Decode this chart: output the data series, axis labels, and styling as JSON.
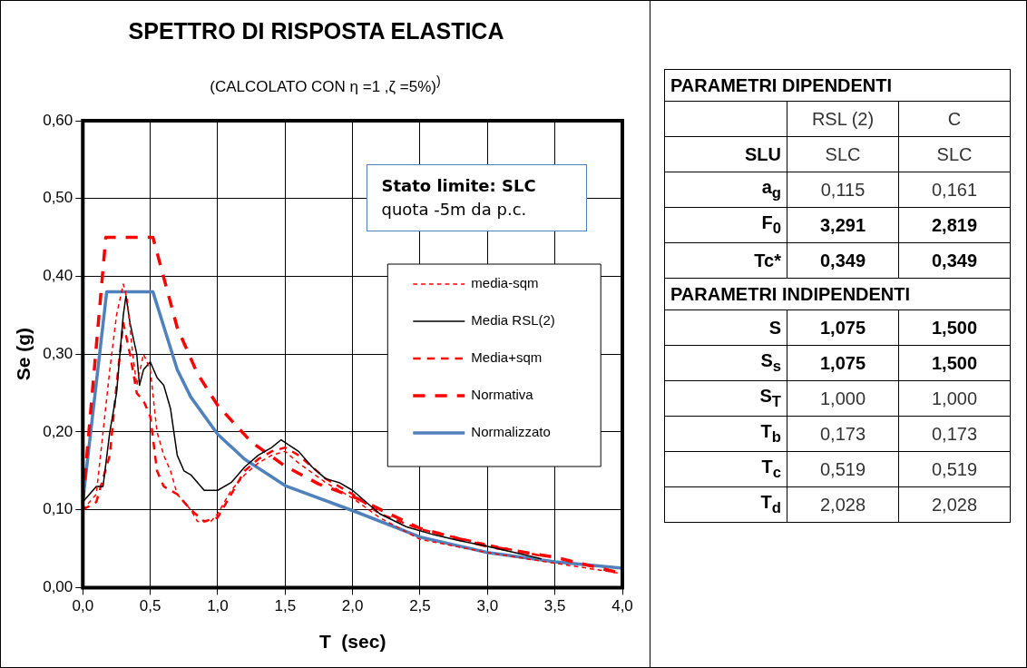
{
  "chart_data": [
    {
      "type": "line",
      "title": "SPETTRO DI RISPOSTA ELASTICA",
      "subtitle": "(CALCOLATO CON  η =1 ,ζ =5%)$^{)}$",
      "xlabel": "T  (sec)",
      "ylabel": "Se (g)",
      "annotations": [
        "Stato limite: SLC",
        "quota -5m da p.c."
      ],
      "xlim": [
        0,
        4
      ],
      "xticks": [
        {
          "value": 0,
          "label": "0,0"
        },
        {
          "value": 0.5,
          "label": "0,5"
        },
        {
          "value": 1,
          "label": "1,0"
        },
        {
          "value": 1.5,
          "label": "1,5"
        },
        {
          "value": 2,
          "label": "2,0"
        },
        {
          "value": 2.5,
          "label": "2,5"
        },
        {
          "value": 3,
          "label": "3,0"
        },
        {
          "value": 3.5,
          "label": "3,5"
        },
        {
          "value": 4,
          "label": "4,0"
        }
      ],
      "ylim": [
        0,
        0.6
      ],
      "yticks": [
        {
          "value": 0,
          "label": "0,00"
        },
        {
          "value": 0.1,
          "label": "0,10"
        },
        {
          "value": 0.2,
          "label": "0,20"
        },
        {
          "value": 0.3,
          "label": "0,30"
        },
        {
          "value": 0.4,
          "label": "0,40"
        },
        {
          "value": 0.5,
          "label": "0,50"
        },
        {
          "value": 0.6,
          "label": "0,60"
        }
      ],
      "grid": true,
      "legend": "right",
      "marker": "none",
      "series": [
        {
          "name": "media-sqm",
          "color": "#ff0000",
          "line_style": "dashed",
          "x": [
            0,
            0.1,
            0.15,
            0.2,
            0.25,
            0.3,
            0.33,
            0.37,
            0.4,
            0.45,
            0.5,
            0.55,
            0.6,
            0.65,
            0.7,
            0.75,
            0.8,
            0.85,
            0.95,
            1.0,
            1.1,
            1.2,
            1.3,
            1.4,
            1.5,
            1.6,
            1.8,
            2.0,
            2.2,
            2.5,
            3.0,
            3.4,
            4.0
          ],
          "values": [
            0.1,
            0.12,
            0.2,
            0.28,
            0.35,
            0.39,
            0.37,
            0.3,
            0.26,
            0.3,
            0.28,
            0.2,
            0.17,
            0.15,
            0.12,
            0.11,
            0.1,
            0.085,
            0.085,
            0.095,
            0.125,
            0.145,
            0.16,
            0.17,
            0.175,
            0.16,
            0.135,
            0.115,
            0.09,
            0.062,
            0.045,
            0.034,
            0.018
          ]
        },
        {
          "name": "Media RSL(2)",
          "color": "#000000",
          "line_style": "solid",
          "x": [
            0,
            0.05,
            0.1,
            0.15,
            0.2,
            0.25,
            0.3,
            0.32,
            0.35,
            0.4,
            0.42,
            0.45,
            0.5,
            0.55,
            0.6,
            0.65,
            0.7,
            0.75,
            0.8,
            0.9,
            1.0,
            1.1,
            1.2,
            1.3,
            1.4,
            1.47,
            1.6,
            1.7,
            1.8,
            1.9,
            2.0,
            2.2,
            2.4,
            2.6,
            2.8,
            3.0,
            3.2,
            3.4
          ],
          "values": [
            0.11,
            0.12,
            0.13,
            0.13,
            0.2,
            0.25,
            0.35,
            0.375,
            0.34,
            0.3,
            0.26,
            0.28,
            0.29,
            0.27,
            0.26,
            0.23,
            0.17,
            0.15,
            0.145,
            0.125,
            0.125,
            0.135,
            0.155,
            0.17,
            0.18,
            0.19,
            0.175,
            0.155,
            0.14,
            0.135,
            0.125,
            0.095,
            0.078,
            0.068,
            0.06,
            0.053,
            0.045,
            0.037
          ]
        },
        {
          "name": "Media+sqm",
          "color": "#ff0000",
          "line_style": "dashed",
          "x": [
            0,
            0.1,
            0.2,
            0.25,
            0.3,
            0.35,
            0.4,
            0.45,
            0.5,
            0.55,
            0.6,
            0.7,
            0.8,
            0.9,
            1.0,
            1.1,
            1.2,
            1.3,
            1.4,
            1.5,
            1.6,
            1.8,
            2.0,
            2.2,
            2.5,
            3.0,
            3.42
          ],
          "values": [
            0.1,
            0.11,
            0.17,
            0.26,
            0.34,
            0.3,
            0.25,
            0.24,
            0.22,
            0.15,
            0.13,
            0.12,
            0.1,
            0.085,
            0.09,
            0.12,
            0.15,
            0.165,
            0.175,
            0.18,
            0.17,
            0.14,
            0.12,
            0.095,
            0.075,
            0.055,
            0.04
          ]
        },
        {
          "name": "Normativa",
          "color": "#ff0000",
          "line_style": "dashed",
          "x": [
            0,
            0.17,
            0.52,
            0.7,
            0.85,
            1.0,
            1.25,
            1.5,
            1.75,
            2.03,
            2.5,
            3.0,
            3.5,
            4.0
          ],
          "values": [
            0.11,
            0.45,
            0.45,
            0.334,
            0.275,
            0.234,
            0.187,
            0.156,
            0.133,
            0.115,
            0.076,
            0.053,
            0.039,
            0.018
          ]
        },
        {
          "name": "Normalizzato",
          "color": "#4f81bd",
          "line_style": "solid",
          "x": [
            0,
            0.177,
            0.52,
            0.7,
            0.8,
            1.0,
            1.2,
            1.5,
            2.03,
            2.5,
            3.0,
            3.5,
            4.0
          ],
          "values": [
            0.111,
            0.38,
            0.38,
            0.28,
            0.245,
            0.197,
            0.165,
            0.131,
            0.097,
            0.065,
            0.045,
            0.033,
            0.025
          ]
        }
      ]
    },
    {
      "type": "other",
      "title": "PARAMETRI DIPENDENTI",
      "subtitle": "PARAMETRI INDIPENDENTI",
      "categories": [
        null,
        "RSL (2)",
        "C"
      ],
      "y_categories": [
        "SLU",
        "a$_{g}$",
        "F$_{0}$",
        "Tc*",
        "S",
        "S$_{s}$",
        "S$_{T}$",
        "T$_{b}$",
        "T$_{c}$",
        "T$_{d}$"
      ],
      "cell_labels": [
        [
          "SLC",
          "SLC"
        ],
        [
          "0,115",
          "0,161"
        ],
        [
          "3,291",
          "2,819"
        ],
        [
          "0,349",
          "0,349"
        ],
        [
          "1,075",
          "1,500"
        ],
        [
          "1,075",
          "1,500"
        ],
        [
          "1,000",
          "1,000"
        ],
        [
          "0,173",
          "0,173"
        ],
        [
          "0,519",
          "0,519"
        ],
        [
          "2,028",
          "2,028"
        ]
      ]
    }
  ]
}
